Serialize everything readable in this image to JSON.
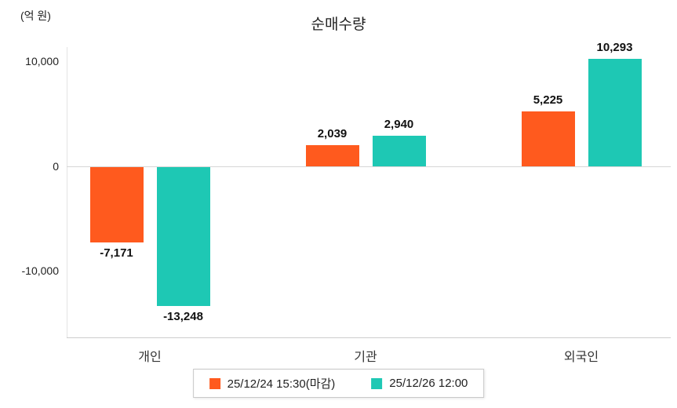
{
  "title": "순매수량",
  "unit_label": "(억 원)",
  "y_axis": {
    "ticks": [
      {
        "label": "10,000",
        "value": 10000
      },
      {
        "label": "0",
        "value": 0
      },
      {
        "label": "-10,000",
        "value": -10000
      }
    ]
  },
  "chart_data": {
    "type": "bar",
    "title": "순매수량",
    "ylabel": "(억 원)",
    "categories": [
      "개인",
      "기관",
      "외국인"
    ],
    "series": [
      {
        "name": "25/12/24 15:30(마감)",
        "color": "#ff5a1e",
        "values": [
          -7171,
          2039,
          5225
        ],
        "labels": [
          "-7,171",
          "2,039",
          "5,225"
        ]
      },
      {
        "name": "25/12/26 12:00",
        "color": "#1ec8b4",
        "values": [
          -13248,
          2940,
          10293
        ],
        "labels": [
          "-13,248",
          "2,940",
          "10,293"
        ]
      }
    ],
    "ylim": [
      -15000,
      12500
    ],
    "y_tick_values": [
      10000,
      0,
      -10000
    ],
    "grid": "zero-line-only",
    "legend_position": "bottom"
  }
}
